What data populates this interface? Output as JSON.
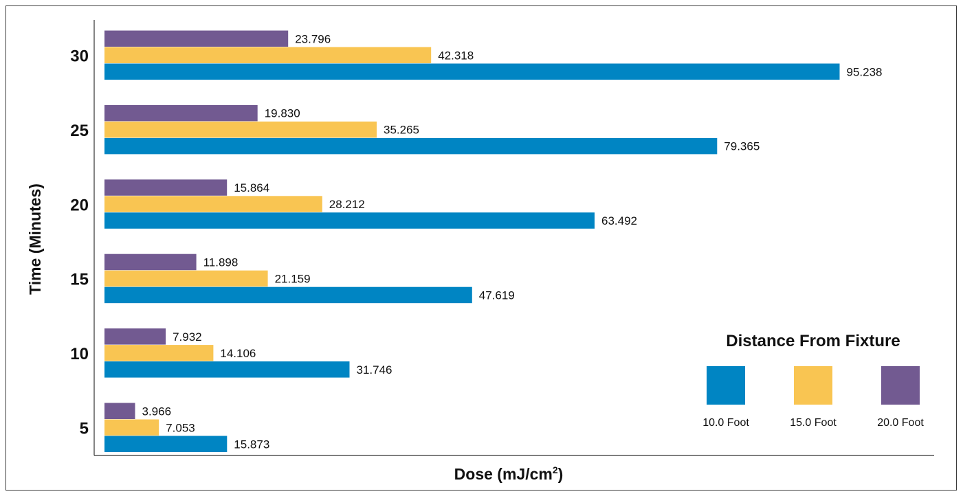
{
  "chart_data": {
    "type": "bar",
    "orientation": "horizontal",
    "categories": [
      "5",
      "10",
      "15",
      "20",
      "25",
      "30"
    ],
    "series": [
      {
        "name": "10.0 Foot",
        "color": "#0085C3",
        "values": [
          15.873,
          31.746,
          47.619,
          63.492,
          79.365,
          95.238
        ]
      },
      {
        "name": "15.0 Foot",
        "color": "#F9C552",
        "values": [
          7.053,
          14.106,
          21.159,
          28.212,
          35.265,
          42.318
        ]
      },
      {
        "name": "20.0 Foot",
        "color": "#725A91",
        "values": [
          3.966,
          7.932,
          11.898,
          15.864,
          19.83,
          23.796
        ]
      }
    ],
    "value_labels": [
      [
        "15.873",
        "31.746",
        "47.619",
        "63.492",
        "79.365",
        "95.238"
      ],
      [
        "7.053",
        "14.106",
        "21.159",
        "28.212",
        "35.265",
        "42.318"
      ],
      [
        "3.966",
        "7.932",
        "11.898",
        "15.864",
        "19.830",
        "23.796"
      ]
    ],
    "xlabel_main": "Dose (mJ/cm",
    "xlabel_sup": "2",
    "xlabel_end": ")",
    "ylabel": "Time (Minutes)",
    "xlim": [
      0,
      100
    ],
    "grid": false,
    "legend": {
      "title": "Distance From Fixture",
      "placement": "bottom-right"
    }
  }
}
